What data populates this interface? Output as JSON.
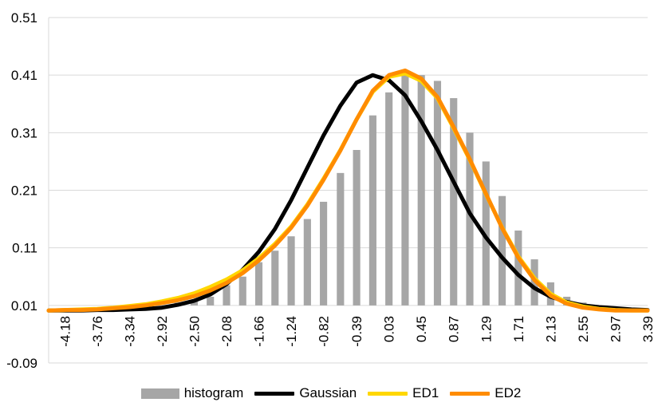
{
  "colors": {
    "histogram": "#a6a6a6",
    "gaussian": "#000000",
    "ed1": "#ffd700",
    "ed2": "#ff8c00",
    "grid": "#d9d9d9"
  },
  "chart_data": {
    "type": "bar",
    "title": "",
    "xlabel": "",
    "ylabel": "",
    "ylim": [
      -0.09,
      0.51
    ],
    "yticks": [
      "0.51",
      "0.41",
      "0.31",
      "0.21",
      "0.11",
      "0.01",
      "-0.09"
    ],
    "ytick_values": [
      0.51,
      0.41,
      0.31,
      0.21,
      0.11,
      0.01,
      -0.09
    ],
    "baseline": 0.01,
    "x_range": [
      -4.39,
      3.39
    ],
    "xtick_labels": [
      "-4.18",
      "-3.76",
      "-3.34",
      "-2.92",
      "-2.50",
      "-2.08",
      "-1.66",
      "-1.24",
      "-0.82",
      "-0.39",
      "0.03",
      "0.45",
      "0.87",
      "1.29",
      "1.71",
      "2.13",
      "2.55",
      "2.97",
      "3.39"
    ],
    "xtick_values": [
      -4.18,
      -3.76,
      -3.34,
      -2.92,
      -2.5,
      -2.08,
      -1.66,
      -1.24,
      -0.82,
      -0.39,
      0.03,
      0.45,
      0.87,
      1.29,
      1.71,
      2.13,
      2.55,
      2.97,
      3.39
    ],
    "histogram": {
      "name": "histogram",
      "x": [
        -4.18,
        -3.97,
        -3.76,
        -3.55,
        -3.34,
        -3.13,
        -2.92,
        -2.71,
        -2.5,
        -2.29,
        -2.08,
        -1.87,
        -1.66,
        -1.45,
        -1.24,
        -1.03,
        -0.82,
        -0.6,
        -0.39,
        -0.18,
        0.03,
        0.24,
        0.45,
        0.66,
        0.87,
        1.08,
        1.29,
        1.5,
        1.71,
        1.92,
        2.13,
        2.34,
        2.55,
        2.76,
        2.97,
        3.18
      ],
      "values": [
        0.0,
        0.0,
        0.0,
        0.0,
        0.0,
        0.0,
        0.0,
        0.015,
        0.018,
        0.025,
        0.045,
        0.06,
        0.085,
        0.105,
        0.13,
        0.16,
        0.19,
        0.24,
        0.28,
        0.34,
        0.38,
        0.41,
        0.41,
        0.4,
        0.37,
        0.31,
        0.26,
        0.2,
        0.14,
        0.09,
        0.05,
        0.025,
        0.015,
        0.0,
        0.0,
        0.0
      ]
    },
    "series": [
      {
        "name": "Gaussian",
        "x": [
          -4.39,
          -4.18,
          -3.97,
          -3.76,
          -3.55,
          -3.34,
          -3.13,
          -2.92,
          -2.71,
          -2.5,
          -2.29,
          -2.08,
          -1.87,
          -1.66,
          -1.45,
          -1.24,
          -1.03,
          -0.82,
          -0.6,
          -0.39,
          -0.18,
          0.03,
          0.24,
          0.45,
          0.66,
          0.87,
          1.08,
          1.29,
          1.5,
          1.71,
          1.92,
          2.13,
          2.34,
          2.55,
          2.76,
          2.97,
          3.18,
          3.39
        ],
        "values": [
          0.001,
          0.001,
          0.001,
          0.002,
          0.002,
          0.003,
          0.004,
          0.006,
          0.011,
          0.018,
          0.029,
          0.047,
          0.072,
          0.103,
          0.143,
          0.193,
          0.249,
          0.305,
          0.357,
          0.397,
          0.41,
          0.401,
          0.375,
          0.33,
          0.28,
          0.225,
          0.17,
          0.128,
          0.093,
          0.063,
          0.04,
          0.025,
          0.016,
          0.01,
          0.007,
          0.005,
          0.003,
          0.002
        ]
      },
      {
        "name": "ED1",
        "x": [
          -4.39,
          -4.18,
          -3.97,
          -3.76,
          -3.55,
          -3.34,
          -3.13,
          -2.92,
          -2.71,
          -2.5,
          -2.29,
          -2.08,
          -1.87,
          -1.66,
          -1.45,
          -1.24,
          -1.03,
          -0.82,
          -0.6,
          -0.39,
          -0.18,
          0.03,
          0.24,
          0.45,
          0.66,
          0.87,
          1.08,
          1.29,
          1.5,
          1.71,
          1.92,
          2.13,
          2.34,
          2.55,
          2.76,
          2.97,
          3.18,
          3.39
        ],
        "values": [
          0.001,
          0.002,
          0.003,
          0.004,
          0.006,
          0.009,
          0.012,
          0.017,
          0.023,
          0.031,
          0.042,
          0.055,
          0.071,
          0.092,
          0.117,
          0.147,
          0.185,
          0.23,
          0.28,
          0.333,
          0.381,
          0.407,
          0.413,
          0.4,
          0.37,
          0.318,
          0.263,
          0.203,
          0.145,
          0.095,
          0.057,
          0.03,
          0.015,
          0.008,
          0.004,
          0.002,
          0.001,
          0.001
        ]
      },
      {
        "name": "ED2",
        "x": [
          -4.39,
          -4.18,
          -3.97,
          -3.76,
          -3.55,
          -3.34,
          -3.13,
          -2.92,
          -2.71,
          -2.5,
          -2.29,
          -2.08,
          -1.87,
          -1.66,
          -1.45,
          -1.24,
          -1.03,
          -0.82,
          -0.6,
          -0.39,
          -0.18,
          0.03,
          0.24,
          0.45,
          0.66,
          0.87,
          1.08,
          1.29,
          1.5,
          1.71,
          1.92,
          2.13,
          2.34,
          2.55,
          2.76,
          2.97,
          3.18,
          3.39
        ],
        "values": [
          0.001,
          0.002,
          0.002,
          0.003,
          0.005,
          0.007,
          0.01,
          0.014,
          0.019,
          0.026,
          0.036,
          0.049,
          0.066,
          0.088,
          0.114,
          0.145,
          0.183,
          0.228,
          0.279,
          0.333,
          0.383,
          0.41,
          0.418,
          0.404,
          0.372,
          0.32,
          0.264,
          0.204,
          0.144,
          0.093,
          0.054,
          0.027,
          0.013,
          0.006,
          0.003,
          0.001,
          0.001,
          0.001
        ]
      }
    ],
    "legend": [
      "histogram",
      "Gaussian",
      "ED1",
      "ED2"
    ],
    "legend_position": "bottom",
    "grid": true
  }
}
